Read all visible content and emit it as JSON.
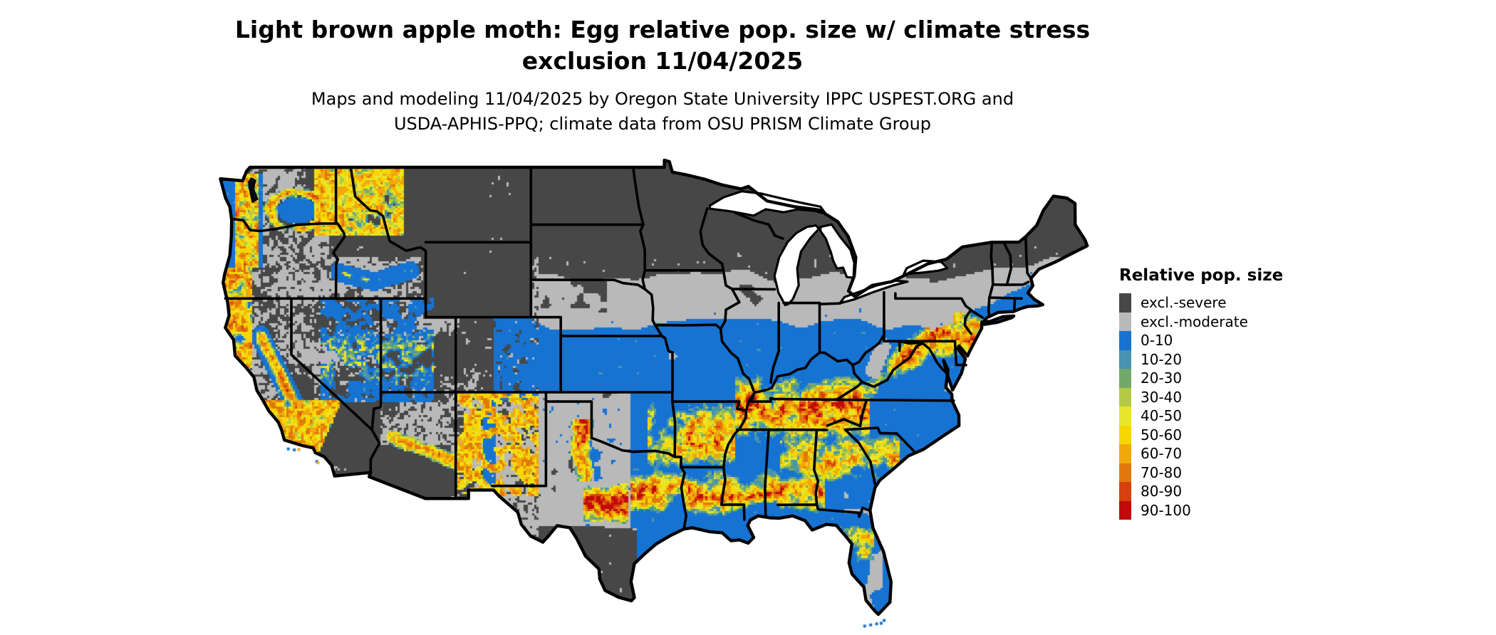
{
  "header": {
    "title_line1": "Light brown apple moth: Egg relative pop. size w/ climate stress",
    "title_line2": "exclusion 11/04/2025",
    "subtitle_line1": "Maps and modeling 11/04/2025 by Oregon State University IPPC USPEST.ORG and",
    "subtitle_line2": "USDA-APHIS-PPQ; climate data from OSU PRISM Climate Group"
  },
  "legend": {
    "title": "Relative pop. size",
    "entries": [
      {
        "label": "excl.-severe",
        "color": "#474747"
      },
      {
        "label": "excl.-moderate",
        "color": "#b9b9b9"
      },
      {
        "label": "0-10",
        "color": "#1673d2"
      },
      {
        "label": "10-20",
        "color": "#4793b0"
      },
      {
        "label": "20-30",
        "color": "#72a96a"
      },
      {
        "label": "30-40",
        "color": "#b4ca45"
      },
      {
        "label": "40-50",
        "color": "#e8e62a"
      },
      {
        "label": "50-60",
        "color": "#f6d603"
      },
      {
        "label": "60-70",
        "color": "#f0a80c"
      },
      {
        "label": "70-80",
        "color": "#e2780b"
      },
      {
        "label": "80-90",
        "color": "#d8400e"
      },
      {
        "label": "90-100",
        "color": "#c20a0a"
      }
    ]
  },
  "map": {
    "background_color": "#ffffff",
    "water_color": "#ffffff",
    "state_border_color": "#000000",
    "puget_sound_color": "#0a0a0a",
    "palette": {
      "excl_severe": "#474747",
      "excl_moderate": "#b9b9b9",
      "p0_10": "#1673d2",
      "p10_20": "#4793b0",
      "p20_30": "#72a96a",
      "p30_40": "#b4ca45",
      "p40_50": "#e8e62a",
      "p50_60": "#f6d603",
      "p60_70": "#f0a80c",
      "p70_80": "#e2780b",
      "p80_90": "#d8400e",
      "p90_100": "#c20a0a"
    }
  }
}
